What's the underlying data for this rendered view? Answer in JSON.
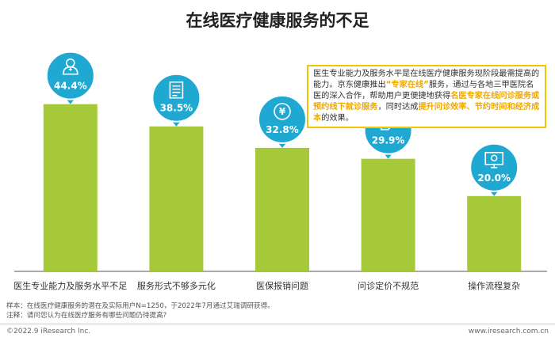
{
  "title": "在线医疗健康服务的不足",
  "callout": {
    "parts": [
      {
        "text": "医生专业能力及服务水平是在线医疗健康服务现阶段最需提高的能力。京东健康推出",
        "hl": false
      },
      {
        "text": "“专家在线”",
        "hl": true
      },
      {
        "text": "服务，通过与各地三甲医院名医的深入合作，帮助用户更便捷地获得",
        "hl": false
      },
      {
        "text": "名医专家在线问诊服务或预约线下就诊服务",
        "hl": true
      },
      {
        "text": "，同时达成",
        "hl": false
      },
      {
        "text": "提升问诊效率、节约时间和经济成本",
        "hl": true
      },
      {
        "text": "的效果。",
        "hl": false
      }
    ]
  },
  "chart_data": {
    "type": "bar",
    "categories": [
      "医生专业能力及服务水平不足",
      "服务形式不够多元化",
      "医保报销问题",
      "问诊定价不规范",
      "操作流程复杂"
    ],
    "values": [
      44.4,
      38.5,
      32.8,
      29.9,
      20.0
    ],
    "value_labels": [
      "44.4%",
      "38.5%",
      "32.8%",
      "29.9%",
      "20.0%"
    ],
    "icons": [
      "doctor-icon",
      "document-icon",
      "yuan-icon",
      "price-tag-icon",
      "computer-settings-icon"
    ],
    "ylim": [
      0,
      50
    ],
    "colors": {
      "bar": "#a6c93a",
      "bubble": "#1fa8d2",
      "axis": "#555555"
    },
    "xlabel": "",
    "ylabel": ""
  },
  "notes": {
    "sample": "样本：在线医疗健康服务的潜在及实际用户N=1250，于2022年7月通过艾瑞调研获得。",
    "note": "注释：请问您认为在线医疗服务有哪些问题仍待提高?"
  },
  "footer": {
    "copyright": "©2022.9 iResearch Inc.",
    "website": "www.iresearch.com.cn"
  }
}
